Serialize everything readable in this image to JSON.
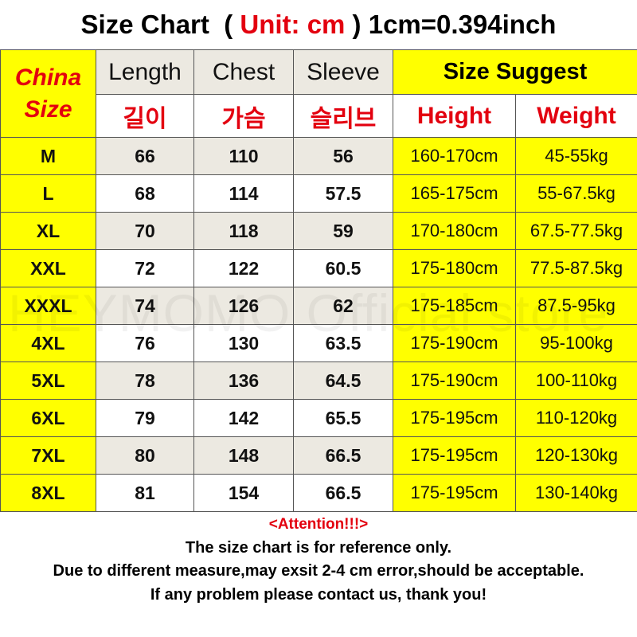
{
  "title": {
    "prefix": "Size Chart  ( ",
    "unit": "Unit: cm",
    " suffix_sep": "",
    "suffix": " ) 1cm=0.394inch"
  },
  "headers": {
    "china_size": [
      "China",
      "Size"
    ],
    "length": "Length",
    "chest": "Chest",
    "sleeve": "Sleeve",
    "length_kr": "길이",
    "chest_kr": "가슴",
    "sleeve_kr": "슬리브",
    "size_suggest": "Size Suggest",
    "height": "Height",
    "weight": "Weight"
  },
  "rows": [
    {
      "size": "M",
      "length": "66",
      "chest": "110",
      "sleeve": "56",
      "height": "160-170cm",
      "weight": "45-55kg"
    },
    {
      "size": "L",
      "length": "68",
      "chest": "114",
      "sleeve": "57.5",
      "height": "165-175cm",
      "weight": "55-67.5kg"
    },
    {
      "size": "XL",
      "length": "70",
      "chest": "118",
      "sleeve": "59",
      "height": "170-180cm",
      "weight": "67.5-77.5kg"
    },
    {
      "size": "XXL",
      "length": "72",
      "chest": "122",
      "sleeve": "60.5",
      "height": "175-180cm",
      "weight": "77.5-87.5kg"
    },
    {
      "size": "XXXL",
      "length": "74",
      "chest": "126",
      "sleeve": "62",
      "height": "175-185cm",
      "weight": "87.5-95kg"
    },
    {
      "size": "4XL",
      "length": "76",
      "chest": "130",
      "sleeve": "63.5",
      "height": "175-190cm",
      "weight": "95-100kg"
    },
    {
      "size": "5XL",
      "length": "78",
      "chest": "136",
      "sleeve": "64.5",
      "height": "175-190cm",
      "weight": "100-110kg"
    },
    {
      "size": "6XL",
      "length": "79",
      "chest": "142",
      "sleeve": "65.5",
      "height": "175-195cm",
      "weight": "110-120kg"
    },
    {
      "size": "7XL",
      "length": "80",
      "chest": "148",
      "sleeve": "66.5",
      "height": "175-195cm",
      "weight": "120-130kg"
    },
    {
      "size": "8XL",
      "length": "81",
      "chest": "154",
      "sleeve": "66.5",
      "height": "175-195cm",
      "weight": "130-140kg"
    }
  ],
  "watermark": "HEYMOMO Official store",
  "notes": {
    "attention": "<Attention!!!>",
    "lines": [
      "The size chart is for reference only.",
      "Due to different measure,may exsit 2-4 cm error,should be acceptable.",
      "If any problem please contact us, thank you!"
    ]
  },
  "colors": {
    "highlight": "#ffff00",
    "red": "#e3000f",
    "shade": "#ece9e1"
  }
}
